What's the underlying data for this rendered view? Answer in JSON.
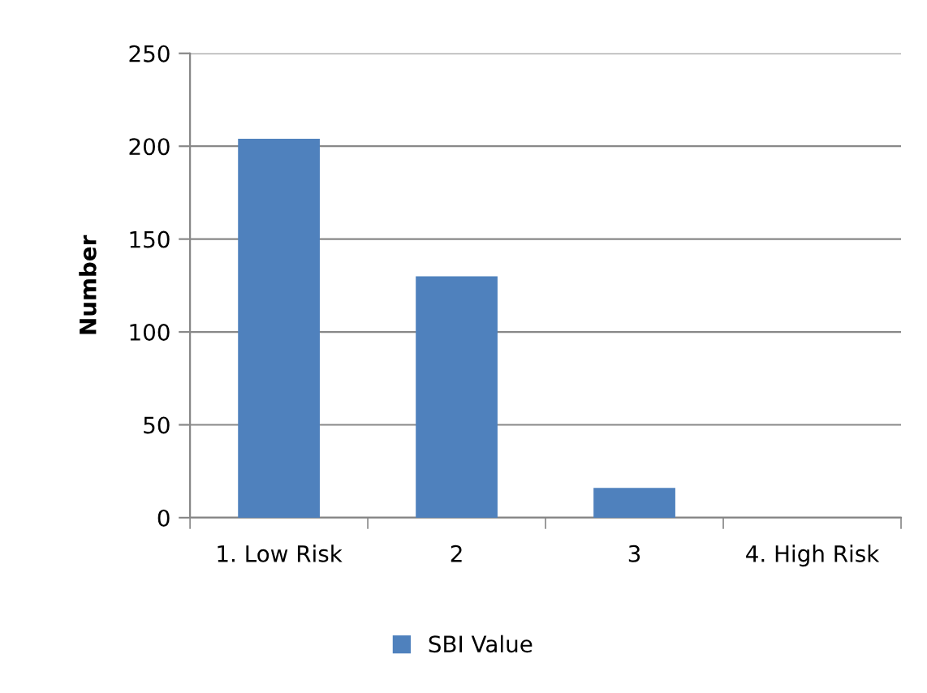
{
  "chart_data": {
    "type": "bar",
    "ylabel": "Number",
    "categories": [
      "1. Low Risk",
      "2",
      "3",
      "4. High Risk"
    ],
    "series": [
      {
        "name": "SBI Value",
        "color": "#4f81bd",
        "values": [
          204,
          130,
          16,
          0
        ]
      }
    ],
    "ylim": [
      0,
      250
    ],
    "yticks": [
      0,
      50,
      100,
      150,
      200,
      250
    ],
    "grid": "y",
    "legend": "bottom"
  }
}
